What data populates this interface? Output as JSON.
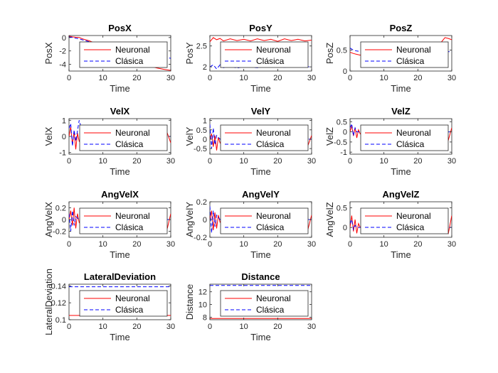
{
  "chart_data": [
    {
      "type": "line",
      "title": "PosX",
      "xlabel": "Time",
      "ylabel": "PosX",
      "xlim": [
        0,
        30
      ],
      "ylim": [
        -5,
        0.3
      ],
      "xticks": [
        0,
        10,
        20,
        30
      ],
      "yticks": [
        -4,
        -2,
        0
      ],
      "legend": [
        "Neuronal",
        "Clásica"
      ],
      "series": [
        {
          "name": "Neuronal",
          "color": "#ff0000",
          "style": "solid",
          "x": [
            0,
            1,
            2,
            3,
            4,
            6,
            8,
            10,
            12,
            14,
            16,
            18,
            20,
            22,
            24,
            26,
            28,
            30
          ],
          "y": [
            0.2,
            0.1,
            0.05,
            0,
            -0.2,
            -0.5,
            -0.9,
            -1.4,
            -1.9,
            -2.4,
            -2.9,
            -3.3,
            -3.7,
            -4.0,
            -4.3,
            -4.55,
            -4.75,
            -4.9
          ]
        },
        {
          "name": "Clásica",
          "color": "#0000ff",
          "style": "dashed",
          "x": [
            0,
            1,
            2,
            3,
            5,
            8,
            12,
            16,
            20,
            24,
            28,
            30
          ],
          "y": [
            0.1,
            0,
            -0.1,
            -0.2,
            -0.5,
            -0.9,
            -1.3,
            -1.7,
            -2.1,
            -2.5,
            -2.9,
            -3.1
          ]
        }
      ]
    },
    {
      "type": "line",
      "title": "PosY",
      "xlabel": "Time",
      "ylabel": "PosY",
      "xlim": [
        0,
        30
      ],
      "ylim": [
        1.9,
        2.75
      ],
      "xticks": [
        0,
        10,
        20,
        30
      ],
      "yticks": [
        2,
        2.5
      ],
      "legend": [
        "Neuronal",
        "Clásica"
      ],
      "series": [
        {
          "name": "Neuronal",
          "color": "#ff0000",
          "style": "solid",
          "x": [
            0,
            1,
            2,
            3,
            4,
            6,
            8,
            10,
            12,
            14,
            16,
            18,
            20,
            22,
            24,
            26,
            28,
            30
          ],
          "y": [
            2.6,
            2.7,
            2.65,
            2.68,
            2.62,
            2.67,
            2.63,
            2.66,
            2.62,
            2.67,
            2.63,
            2.66,
            2.61,
            2.67,
            2.63,
            2.66,
            2.62,
            2.64
          ]
        },
        {
          "name": "Clásica",
          "color": "#0000ff",
          "style": "dashed",
          "x": [
            0,
            1,
            2,
            3,
            4,
            6,
            8,
            10,
            14,
            18,
            22,
            26,
            30
          ],
          "y": [
            2.0,
            2.05,
            1.95,
            2.05,
            1.98,
            2.02,
            1.97,
            2.01,
            1.98,
            2.02,
            1.99,
            2.01,
            2.0
          ]
        }
      ]
    },
    {
      "type": "line",
      "title": "PosZ",
      "xlabel": "Time",
      "ylabel": "PosZ",
      "xlim": [
        0,
        30
      ],
      "ylim": [
        0,
        0.85
      ],
      "xticks": [
        0,
        10,
        20,
        30
      ],
      "yticks": [
        0,
        0.5
      ],
      "legend": [
        "Neuronal",
        "Clásica"
      ],
      "series": [
        {
          "name": "Neuronal",
          "color": "#ff0000",
          "style": "solid",
          "x": [
            0,
            1,
            2,
            3,
            4,
            6,
            8,
            10,
            14,
            18,
            22,
            26,
            27,
            28,
            29,
            30
          ],
          "y": [
            0.45,
            0.42,
            0.4,
            0.38,
            0.42,
            0.4,
            0.43,
            0.41,
            0.44,
            0.42,
            0.45,
            0.5,
            0.7,
            0.8,
            0.78,
            0.75
          ]
        },
        {
          "name": "Clásica",
          "color": "#0000ff",
          "style": "dashed",
          "x": [
            0,
            1,
            2,
            3,
            5,
            8,
            12,
            16,
            20,
            24,
            28,
            30
          ],
          "y": [
            0.55,
            0.5,
            0.48,
            0.47,
            0.46,
            0.46,
            0.47,
            0.46,
            0.47,
            0.46,
            0.47,
            0.46
          ]
        }
      ]
    },
    {
      "type": "line",
      "title": "VelX",
      "xlabel": "Time",
      "ylabel": "VelX",
      "xlim": [
        0,
        30
      ],
      "ylim": [
        -1.1,
        1.1
      ],
      "xticks": [
        0,
        10,
        20,
        30
      ],
      "yticks": [
        -1,
        0,
        1
      ],
      "legend": [
        "Neuronal",
        "Clásica"
      ],
      "series": [
        {
          "name": "Neuronal",
          "color": "#ff0000",
          "style": "solid",
          "x": [
            0,
            0.5,
            1,
            1.5,
            2,
            2.5,
            3,
            4,
            5,
            6,
            8,
            10,
            12,
            14,
            16,
            18,
            20,
            22,
            24,
            26,
            28,
            29,
            30
          ],
          "y": [
            0,
            0.6,
            -0.5,
            0.3,
            -0.8,
            0.2,
            -0.3,
            0.1,
            -0.2,
            0,
            -0.1,
            0,
            -0.15,
            0,
            -0.1,
            0,
            -0.1,
            0,
            -0.1,
            0,
            -0.3,
            0.2,
            -0.4
          ]
        },
        {
          "name": "Clásica",
          "color": "#0000ff",
          "style": "dashed",
          "x": [
            0,
            0.5,
            1,
            1.5,
            2,
            3,
            4,
            6,
            8,
            12,
            16,
            20,
            24,
            28,
            30
          ],
          "y": [
            0.5,
            0.8,
            -0.6,
            0.4,
            -0.3,
            1.0,
            0.2,
            0.1,
            0,
            0,
            0,
            0,
            0,
            0,
            0
          ]
        }
      ]
    },
    {
      "type": "line",
      "title": "VelY",
      "xlabel": "Time",
      "ylabel": "VelY",
      "xlim": [
        0,
        30
      ],
      "ylim": [
        -0.8,
        1.1
      ],
      "xticks": [
        0,
        10,
        20,
        30
      ],
      "yticks": [
        -0.5,
        0,
        0.5,
        1
      ],
      "legend": [
        "Neuronal",
        "Clásica"
      ],
      "series": [
        {
          "name": "Neuronal",
          "color": "#ff0000",
          "style": "solid",
          "x": [
            0,
            0.5,
            1,
            1.5,
            2,
            2.5,
            3,
            4,
            6,
            8,
            10,
            12,
            14,
            16,
            18,
            20,
            22,
            24,
            26,
            28,
            29,
            30
          ],
          "y": [
            0,
            0.3,
            -0.4,
            0.2,
            -0.6,
            0.1,
            -0.2,
            0.05,
            -0.05,
            0.03,
            -0.04,
            0.02,
            -0.03,
            0.02,
            -0.03,
            0.02,
            -0.03,
            0.02,
            -0.03,
            0.1,
            -0.3,
            0.2
          ]
        },
        {
          "name": "Clásica",
          "color": "#0000ff",
          "style": "dashed",
          "x": [
            0,
            0.5,
            1,
            1.5,
            2,
            3,
            5,
            8,
            12,
            16,
            20,
            24,
            28,
            30
          ],
          "y": [
            0.8,
            -0.5,
            0.6,
            -0.3,
            0.2,
            0,
            0,
            0,
            0,
            0,
            0,
            0,
            0,
            0
          ]
        }
      ]
    },
    {
      "type": "line",
      "title": "VelZ",
      "xlabel": "Time",
      "ylabel": "VelZ",
      "xlim": [
        0,
        30
      ],
      "ylim": [
        -1.1,
        0.65
      ],
      "xticks": [
        0,
        10,
        20,
        30
      ],
      "yticks": [
        -1,
        -0.5,
        0,
        0.5
      ],
      "legend": [
        "Neuronal",
        "Clásica"
      ],
      "series": [
        {
          "name": "Neuronal",
          "color": "#ff0000",
          "style": "solid",
          "x": [
            0,
            0.5,
            1,
            1.5,
            2,
            2.5,
            3,
            4,
            6,
            8,
            10,
            12,
            14,
            16,
            18,
            20,
            22,
            24,
            26,
            28,
            29,
            30
          ],
          "y": [
            0,
            0.3,
            -0.2,
            0.2,
            -0.3,
            0.1,
            -0.1,
            0.05,
            0,
            0.02,
            0,
            0.02,
            0,
            0.02,
            0,
            0.02,
            0,
            0.02,
            0,
            0.1,
            -0.4,
            0.2
          ]
        },
        {
          "name": "Clásica",
          "color": "#0000ff",
          "style": "dashed",
          "x": [
            0,
            0.5,
            1,
            1.5,
            2,
            3,
            5,
            8,
            12,
            16,
            20,
            24,
            28,
            30
          ],
          "y": [
            0.2,
            0.4,
            -0.2,
            0.2,
            0,
            0,
            0,
            0,
            0,
            0,
            0,
            0,
            0,
            0
          ]
        }
      ]
    },
    {
      "type": "line",
      "title": "AngVelX",
      "xlabel": "Time",
      "ylabel": "AngVelX",
      "xlim": [
        0,
        30
      ],
      "ylim": [
        -0.3,
        0.3
      ],
      "xticks": [
        0,
        10,
        20,
        30
      ],
      "yticks": [
        -0.2,
        0,
        0.2
      ],
      "legend": [
        "Neuronal",
        "Clásica"
      ],
      "series": [
        {
          "name": "Neuronal",
          "color": "#ff0000",
          "style": "solid",
          "x": [
            0,
            0.5,
            1,
            1.5,
            2,
            2.5,
            3,
            4,
            6,
            8,
            10,
            12,
            14,
            16,
            18,
            20,
            22,
            24,
            26,
            28,
            29,
            30
          ],
          "y": [
            0,
            0.15,
            -0.1,
            0.2,
            -0.15,
            0.1,
            -0.05,
            0.02,
            -0.02,
            0.01,
            -0.01,
            0.01,
            -0.01,
            0.01,
            -0.01,
            0.01,
            -0.01,
            0.01,
            -0.01,
            0.05,
            -0.15,
            0.1
          ]
        },
        {
          "name": "Clásica",
          "color": "#0000ff",
          "style": "dashed",
          "x": [
            0,
            0.5,
            1,
            1.5,
            2,
            3,
            5,
            8,
            12,
            16,
            20,
            24,
            28,
            30
          ],
          "y": [
            0.1,
            -0.2,
            0.15,
            -0.1,
            0.05,
            0,
            0,
            0,
            0,
            0,
            0,
            0,
            0,
            0
          ]
        }
      ]
    },
    {
      "type": "line",
      "title": "AngVelY",
      "xlabel": "Time",
      "ylabel": "AngVelY",
      "xlim": [
        0,
        30
      ],
      "ylim": [
        -0.2,
        0.2
      ],
      "xticks": [
        0,
        10,
        20,
        30
      ],
      "yticks": [
        -0.2,
        0,
        0.2
      ],
      "legend": [
        "Neuronal",
        "Clásica"
      ],
      "series": [
        {
          "name": "Neuronal",
          "color": "#ff0000",
          "style": "solid",
          "x": [
            0,
            0.5,
            1,
            1.5,
            2,
            2.5,
            3,
            4,
            6,
            8,
            10,
            12,
            14,
            16,
            18,
            20,
            22,
            24,
            26,
            28,
            29,
            30
          ],
          "y": [
            0,
            0.1,
            -0.12,
            0.08,
            -0.1,
            0.05,
            -0.03,
            0.01,
            -0.01,
            0.01,
            -0.01,
            0.01,
            -0.01,
            0.01,
            -0.01,
            0.01,
            -0.01,
            0.01,
            -0.01,
            0.03,
            -0.1,
            0.05
          ]
        },
        {
          "name": "Clásica",
          "color": "#0000ff",
          "style": "dashed",
          "x": [
            0,
            0.5,
            1,
            1.5,
            2,
            3,
            5,
            8,
            12,
            16,
            20,
            24,
            28,
            30
          ],
          "y": [
            0.15,
            -0.15,
            0.1,
            -0.08,
            0.05,
            0,
            0,
            0,
            0,
            0,
            0,
            0,
            0,
            0
          ]
        }
      ]
    },
    {
      "type": "line",
      "title": "AngVelZ",
      "xlabel": "Time",
      "ylabel": "AngVelZ",
      "xlim": [
        0,
        30
      ],
      "ylim": [
        -0.25,
        0.65
      ],
      "xticks": [
        0,
        10,
        20,
        30
      ],
      "yticks": [
        0,
        0.5
      ],
      "legend": [
        "Neuronal",
        "Clásica"
      ],
      "series": [
        {
          "name": "Neuronal",
          "color": "#ff0000",
          "style": "solid",
          "x": [
            0,
            0.5,
            1,
            1.5,
            2,
            2.5,
            3,
            4,
            6,
            8,
            10,
            12,
            14,
            16,
            18,
            20,
            22,
            24,
            26,
            28,
            29,
            30
          ],
          "y": [
            0,
            0.3,
            -0.1,
            0.2,
            -0.15,
            0.1,
            0,
            0.02,
            0,
            0.02,
            0,
            0.02,
            0,
            0.02,
            0,
            0.02,
            0,
            0.02,
            0,
            0.05,
            -0.15,
            0.3
          ]
        },
        {
          "name": "Clásica",
          "color": "#0000ff",
          "style": "dashed",
          "x": [
            0,
            0.5,
            1,
            1.5,
            2,
            3,
            5,
            8,
            12,
            16,
            20,
            24,
            28,
            30
          ],
          "y": [
            0.1,
            0.2,
            -0.05,
            0.05,
            0,
            0,
            0,
            0,
            0,
            0,
            0,
            0,
            0,
            0
          ]
        }
      ]
    },
    {
      "type": "line",
      "title": "LateralDeviation",
      "xlabel": "Time",
      "ylabel": "LateralDeviation",
      "xlim": [
        0,
        30
      ],
      "ylim": [
        0.1,
        0.142
      ],
      "xticks": [
        0,
        10,
        20,
        30
      ],
      "yticks": [
        0.1,
        0.12,
        0.14
      ],
      "legend": [
        "Neuronal",
        "Clásica"
      ],
      "series": [
        {
          "name": "Neuronal",
          "color": "#ff0000",
          "style": "solid",
          "x": [
            0,
            30
          ],
          "y": [
            0.105,
            0.105
          ]
        },
        {
          "name": "Clásica",
          "color": "#0000ff",
          "style": "dashed",
          "x": [
            0,
            30
          ],
          "y": [
            0.139,
            0.139
          ]
        }
      ]
    },
    {
      "type": "line",
      "title": "Distance",
      "xlabel": "Time",
      "ylabel": "Distance",
      "xlim": [
        0,
        30
      ],
      "ylim": [
        7.6,
        13.2
      ],
      "xticks": [
        0,
        10,
        20,
        30
      ],
      "yticks": [
        8,
        10,
        12
      ],
      "legend": [
        "Neuronal",
        "Clásica"
      ],
      "series": [
        {
          "name": "Neuronal",
          "color": "#ff0000",
          "style": "solid",
          "x": [
            0,
            30
          ],
          "y": [
            7.8,
            7.8
          ]
        },
        {
          "name": "Clásica",
          "color": "#0000ff",
          "style": "dashed",
          "x": [
            0,
            30
          ],
          "y": [
            13.0,
            13.0
          ]
        }
      ]
    }
  ]
}
